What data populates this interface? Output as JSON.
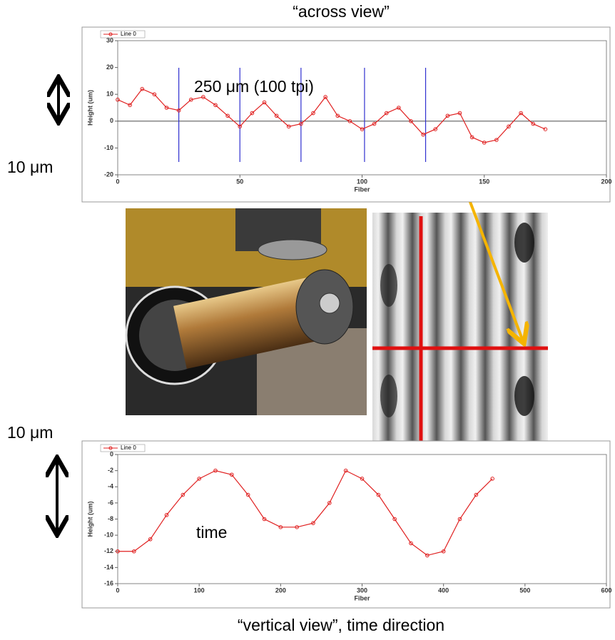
{
  "title": "“across view”",
  "footer": "“vertical view”,   time direction",
  "annotations": {
    "spacing": "250 μm (100 tpi)",
    "scale_top": "10 μm",
    "scale_bottom": "10 μm",
    "time": "time"
  },
  "chart_data": [
    {
      "type": "line",
      "x_label": "Fiber",
      "y_label": "Height (um)",
      "x": [
        0,
        5,
        10,
        15,
        20,
        25,
        30,
        35,
        40,
        45,
        50,
        55,
        60,
        65,
        70,
        75,
        80,
        85,
        90,
        95,
        100,
        105,
        110,
        115,
        120,
        125,
        130,
        135,
        140,
        145,
        150,
        155,
        160,
        165,
        170,
        175
      ],
      "series": [
        {
          "name": "Line 0",
          "color": "#e02020",
          "values": [
            8,
            6,
            12,
            10,
            5,
            4,
            8,
            9,
            6,
            2,
            -2,
            3,
            7,
            2,
            -2,
            -1,
            3,
            9,
            2,
            0,
            -3,
            -1,
            3,
            5,
            0,
            -5,
            -3,
            2,
            3,
            -6,
            -8,
            -7,
            -2,
            3,
            -1,
            -3
          ]
        }
      ],
      "vlines": [
        25,
        50,
        75,
        101,
        126
      ],
      "vline_color": "#3030d0",
      "zero_line": true,
      "xlim": [
        0,
        200
      ],
      "ylim": [
        -20,
        30
      ],
      "xticks": [
        0,
        50,
        100,
        150,
        200
      ],
      "yticks": [
        -20,
        -10,
        0,
        10,
        20,
        30
      ]
    },
    {
      "type": "line",
      "x_label": "Fiber",
      "y_label": "Height (um)",
      "x": [
        0,
        20,
        40,
        60,
        80,
        100,
        120,
        140,
        160,
        180,
        200,
        220,
        240,
        260,
        280,
        300,
        320,
        340,
        360,
        380,
        400,
        420,
        440,
        460
      ],
      "series": [
        {
          "name": "Line 0",
          "color": "#e02020",
          "values": [
            -12,
            -12,
            -10.5,
            -7.5,
            -5,
            -3,
            -2,
            -2.5,
            -5,
            -8,
            -9,
            -9,
            -8.5,
            -6,
            -2,
            -3,
            -5,
            -8,
            -11,
            -12.5,
            -12,
            -8,
            -5,
            -3
          ]
        }
      ],
      "xlim": [
        0,
        600
      ],
      "ylim": [
        -16,
        0
      ],
      "xticks": [
        0,
        100,
        200,
        300,
        400,
        500,
        600
      ],
      "yticks": [
        -16,
        -14,
        -12,
        -10,
        -8,
        -6,
        -4,
        -2,
        0
      ]
    }
  ]
}
